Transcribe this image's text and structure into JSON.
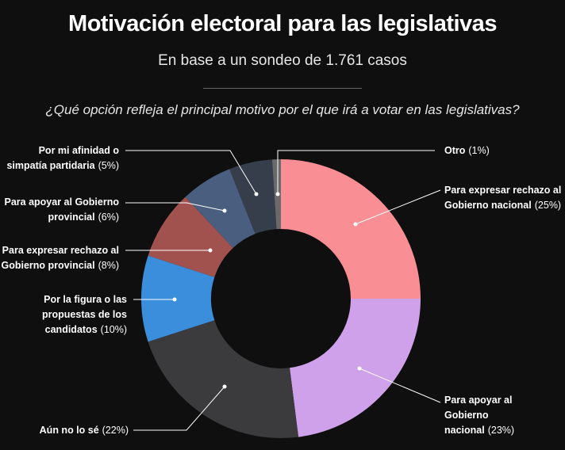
{
  "chart_data": {
    "type": "donut",
    "title": "Motivación electoral para las legislativas",
    "subtitle": "En base a un sondeo de 1.761 casos",
    "question": "¿Qué opción refleja el principal motivo por el que irá a votar en las legislativas?",
    "categories": [
      "Para expresar rechazo al Gobierno nacional",
      "Para apoyar al Gobierno nacional",
      "Aún no lo sé",
      "Por la figura o las propuestas de los candidatos",
      "Para expresar rechazo al Gobierno provincial",
      "Para apoyar al Gobierno provincial",
      "Por mi afinidad o simpatía partidaria",
      "Otro"
    ],
    "values": [
      25,
      23,
      22,
      10,
      8,
      6,
      5,
      1
    ],
    "value_labels": [
      "(25%)",
      "(23%)",
      "(22%)",
      "(10%)",
      "(8%)",
      "(6%)",
      "(5%)",
      "(1%)"
    ],
    "colors": [
      "#f98f95",
      "#cfa1ea",
      "#3b3b3d",
      "#3b8edb",
      "#a1524f",
      "#4a5e80",
      "#363e4c",
      "#6a6a6a"
    ]
  }
}
